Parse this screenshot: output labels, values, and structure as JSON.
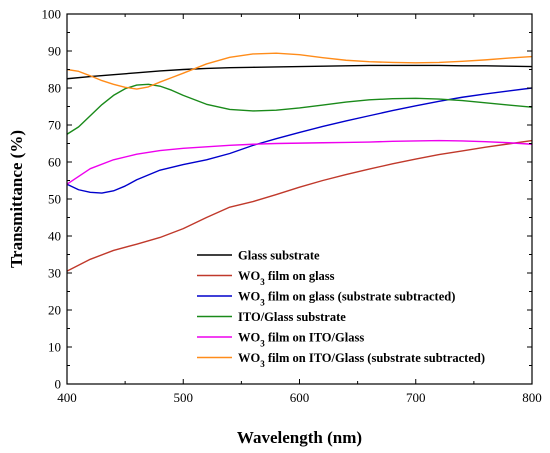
{
  "chart_data": {
    "type": "line",
    "title": "",
    "xlabel": "Wavelength (nm)",
    "ylabel": "Transmittance (%)",
    "xlim": [
      400,
      800
    ],
    "ylim": [
      0,
      100
    ],
    "x_ticks": [
      400,
      500,
      600,
      700,
      800
    ],
    "y_ticks": [
      0,
      10,
      20,
      30,
      40,
      50,
      60,
      70,
      80,
      90,
      100
    ],
    "grid": false,
    "legend_placement": "bottom-right",
    "series": [
      {
        "name": "Glass substrate",
        "color": "#000000",
        "x": [
          400,
          420,
          440,
          460,
          480,
          500,
          520,
          540,
          560,
          580,
          600,
          620,
          640,
          660,
          680,
          700,
          720,
          740,
          760,
          780,
          800
        ],
        "y": [
          82.5,
          83.1,
          83.6,
          84.1,
          84.6,
          85.0,
          85.3,
          85.5,
          85.6,
          85.7,
          85.8,
          85.9,
          86.0,
          86.1,
          86.1,
          86.1,
          86.1,
          86.0,
          86.0,
          85.9,
          85.8
        ]
      },
      {
        "name": "WO3 film on glass",
        "name_main": "WO",
        "name_sub": "3",
        "name_rest": " film on glass",
        "color": "#c0392b",
        "x": [
          400,
          420,
          440,
          460,
          480,
          500,
          520,
          540,
          560,
          580,
          600,
          620,
          640,
          660,
          680,
          700,
          720,
          740,
          760,
          780,
          800
        ],
        "y": [
          30.5,
          33.7,
          36.1,
          37.8,
          39.6,
          42.0,
          45.0,
          47.8,
          49.3,
          51.2,
          53.2,
          55.0,
          56.6,
          58.1,
          59.5,
          60.8,
          62.0,
          63.0,
          64.0,
          64.9,
          65.8
        ]
      },
      {
        "name": "WO3 film on glass (substrate subtracted)",
        "name_main": "WO",
        "name_sub": "3",
        "name_rest": " film on glass (substrate subtracted)",
        "color": "#0000cc",
        "x": [
          400,
          410,
          420,
          430,
          440,
          450,
          460,
          480,
          500,
          520,
          540,
          560,
          580,
          600,
          620,
          640,
          660,
          680,
          700,
          720,
          740,
          760,
          780,
          800
        ],
        "y": [
          54.0,
          52.5,
          51.8,
          51.6,
          52.2,
          53.5,
          55.2,
          57.8,
          59.3,
          60.6,
          62.3,
          64.5,
          66.3,
          68.0,
          69.6,
          71.1,
          72.5,
          73.9,
          75.2,
          76.4,
          77.5,
          78.4,
          79.2,
          80.0
        ]
      },
      {
        "name": "ITO/Glass substrate",
        "color": "#1a8a1a",
        "x": [
          400,
          410,
          420,
          430,
          440,
          450,
          460,
          470,
          480,
          490,
          500,
          520,
          540,
          560,
          580,
          600,
          620,
          640,
          660,
          680,
          700,
          720,
          740,
          760,
          780,
          800
        ],
        "y": [
          67.5,
          69.5,
          72.5,
          75.5,
          78.0,
          79.8,
          80.8,
          81.0,
          80.5,
          79.4,
          78.0,
          75.6,
          74.2,
          73.8,
          74.0,
          74.6,
          75.4,
          76.2,
          76.8,
          77.1,
          77.2,
          77.0,
          76.6,
          76.0,
          75.4,
          74.8
        ]
      },
      {
        "name": "WO3 film on ITO/Glass",
        "name_main": "WO",
        "name_sub": "3",
        "name_rest": " film on ITO/Glass",
        "color": "#ee00ee",
        "x": [
          400,
          420,
          440,
          460,
          480,
          500,
          520,
          540,
          560,
          580,
          600,
          620,
          640,
          660,
          680,
          700,
          720,
          740,
          760,
          780,
          800
        ],
        "y": [
          54.0,
          58.2,
          60.6,
          62.1,
          63.1,
          63.7,
          64.1,
          64.5,
          64.8,
          65.0,
          65.1,
          65.2,
          65.3,
          65.4,
          65.6,
          65.7,
          65.8,
          65.7,
          65.5,
          65.2,
          64.8
        ]
      },
      {
        "name": "WO3 film on ITO/Glass (substrate subtracted)",
        "name_main": "WO",
        "name_sub": "3",
        "name_rest": " film on ITO/Glass (substrate subtracted)",
        "color": "#ff8c1a",
        "x": [
          400,
          410,
          420,
          430,
          440,
          450,
          460,
          470,
          480,
          490,
          500,
          520,
          540,
          560,
          580,
          600,
          620,
          640,
          660,
          680,
          700,
          720,
          740,
          760,
          780,
          800
        ],
        "y": [
          85.0,
          84.5,
          83.3,
          82.0,
          81.0,
          80.2,
          79.7,
          80.3,
          81.6,
          82.8,
          84.0,
          86.5,
          88.3,
          89.2,
          89.4,
          89.0,
          88.2,
          87.5,
          87.1,
          86.9,
          86.8,
          86.9,
          87.2,
          87.6,
          88.1,
          88.5
        ]
      }
    ]
  }
}
